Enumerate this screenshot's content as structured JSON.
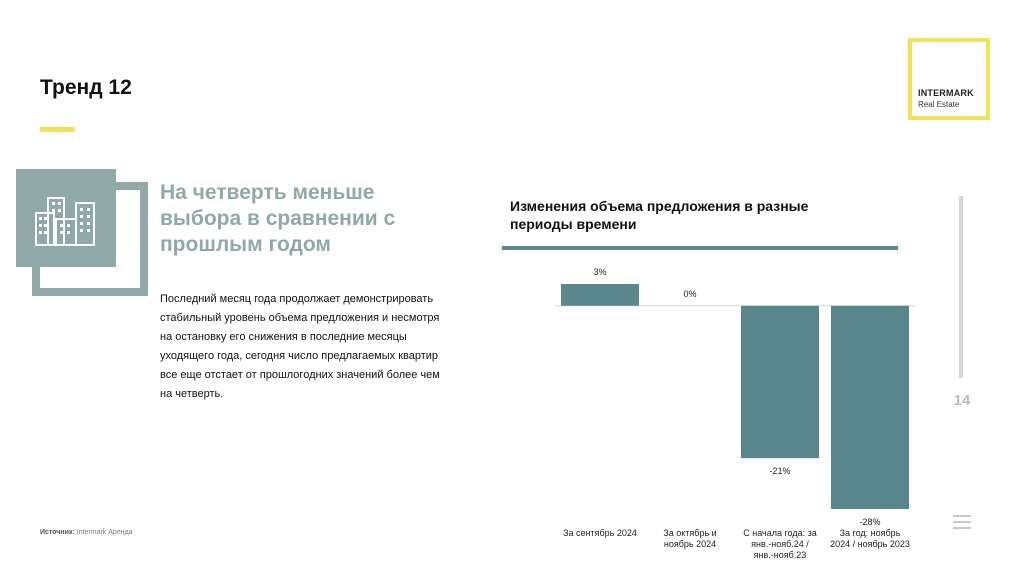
{
  "page": {
    "title": "Тренд 12",
    "headline": "На четверть меньше выбора в сравнении с прошлым годом",
    "body": "Последний месяц года продолжает демонстрировать стабильный уровень объема предложения и несмотря на остановку его снижения в последние месяцы уходящего года, сегодня число предлагаемых квартир все еще отстает от прошлогодних значений более чем на четверть.",
    "source_label": "Источник:",
    "source_value": "Intermark Аренда",
    "page_number": "14"
  },
  "logo": {
    "name": "INTERMARK",
    "subtitle": "Real Estate"
  },
  "colors": {
    "accent": "#f2e25a",
    "teal": "#5a878c",
    "sage": "#8fa9a8"
  },
  "icons": {
    "illustration": "buildings-icon",
    "menu": "menu-icon"
  },
  "chart_data": {
    "type": "bar",
    "title": "Изменения объема предложения в разные периоды времени",
    "categories": [
      "За сентябрь 2024",
      "За октябрь и ноябрь 2024",
      "С начала года: за янв.-нояб.24 / янв.-нояб.23",
      "За год: ноябрь 2024 / ноябрь 2023"
    ],
    "values": [
      3,
      0,
      -21,
      -28
    ],
    "value_labels": [
      "3%",
      "0%",
      "-21%",
      "-28%"
    ],
    "unit": "%",
    "ylim": [
      -28,
      3
    ],
    "grid": false,
    "legend": "none",
    "bar_color": "#5a878c"
  }
}
